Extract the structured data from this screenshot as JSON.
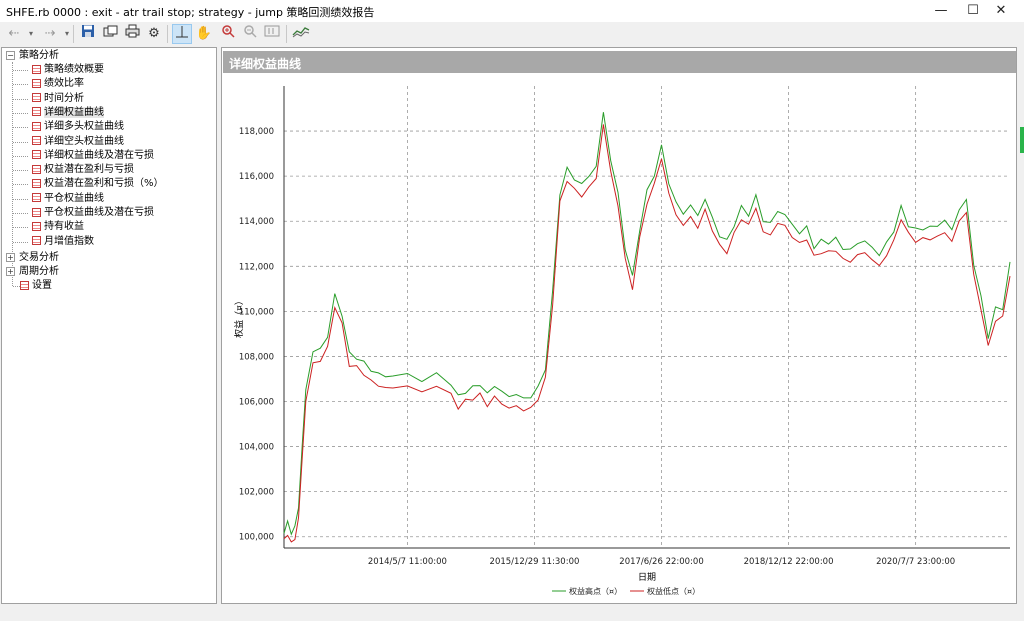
{
  "window": {
    "title": "SHFE.rb 0000 : exit - atr trail stop; strategy - jump 策略回测绩效报告"
  },
  "toolbar": {
    "icons": [
      "back-arrow-icon",
      "dropdown-icon",
      "forward-arrow-icon",
      "dropdown-icon",
      "save-icon",
      "copy-icon",
      "print-icon",
      "gear-icon",
      "crosshair-icon",
      "hand-icon",
      "zoom-in-icon",
      "zoom-out-icon",
      "zoom-reset-icon",
      "chart-style-icon"
    ]
  },
  "tree": {
    "groups": [
      {
        "label": "策略分析",
        "expanded": true
      },
      {
        "label": "交易分析",
        "expanded": false
      },
      {
        "label": "周期分析",
        "expanded": false
      }
    ],
    "items": [
      "策略绩效概要",
      "绩效比率",
      "时间分析",
      "详细权益曲线",
      "详细多头权益曲线",
      "详细空头权益曲线",
      "详细权益曲线及潜在亏损",
      "权益潜在盈利与亏损",
      "权益潜在盈利和亏损（%）",
      "平仓权益曲线",
      "平仓权益曲线及潜在亏损",
      "持有收益",
      "月增值指数"
    ],
    "settings": "设置",
    "selected_item": "详细权益曲线"
  },
  "panel": {
    "title": "详细权益曲线"
  },
  "chart_data": {
    "type": "line",
    "xlabel": "日期",
    "ylabel": "权益（¤）",
    "ylim": [
      99500,
      120000
    ],
    "x_ticks": [
      "2014/5/7 11:00:00",
      "2015/12/29 11:30:00",
      "2017/6/26 22:00:00",
      "2018/12/12 22:00:00",
      "2020/7/7 23:00:00"
    ],
    "y_ticks": [
      "100,000",
      "102,000",
      "104,000",
      "106,000",
      "108,000",
      "110,000",
      "112,000",
      "114,000",
      "116,000",
      "118,000"
    ],
    "y_tick_values": [
      100000,
      102000,
      104000,
      106000,
      108000,
      110000,
      112000,
      114000,
      116000,
      118000
    ],
    "grid": true,
    "legend_position": "bottom",
    "series": [
      {
        "name": "权益高点（¤）",
        "color": "#2a9d2a"
      },
      {
        "name": "权益低点（¤）",
        "color": "#cc2222"
      }
    ],
    "x": [
      0,
      0.005,
      0.01,
      0.015,
      0.02,
      0.025,
      0.03,
      0.04,
      0.05,
      0.06,
      0.07,
      0.08,
      0.09,
      0.1,
      0.11,
      0.12,
      0.13,
      0.14,
      0.15,
      0.17,
      0.19,
      0.21,
      0.23,
      0.24,
      0.25,
      0.26,
      0.27,
      0.28,
      0.29,
      0.3,
      0.31,
      0.32,
      0.33,
      0.34,
      0.35,
      0.36,
      0.37,
      0.38,
      0.39,
      0.4,
      0.41,
      0.42,
      0.43,
      0.44,
      0.45,
      0.46,
      0.47,
      0.48,
      0.49,
      0.5,
      0.51,
      0.52,
      0.53,
      0.54,
      0.55,
      0.56,
      0.57,
      0.58,
      0.59,
      0.6,
      0.61,
      0.62,
      0.63,
      0.64,
      0.65,
      0.66,
      0.67,
      0.68,
      0.69,
      0.7,
      0.71,
      0.72,
      0.73,
      0.74,
      0.75,
      0.76,
      0.77,
      0.78,
      0.79,
      0.8,
      0.81,
      0.82,
      0.83,
      0.84,
      0.85,
      0.86,
      0.87,
      0.88,
      0.89,
      0.9,
      0.91,
      0.92,
      0.93,
      0.94,
      0.95,
      0.96,
      0.97,
      0.98,
      0.99,
      1.0
    ],
    "values": [
      100000,
      100300,
      99900,
      100100,
      101000,
      103700,
      106200,
      107900,
      108000,
      108600,
      110400,
      109600,
      107800,
      107700,
      107400,
      107100,
      106900,
      106800,
      106800,
      106900,
      106600,
      106900,
      106500,
      105900,
      106200,
      106300,
      106500,
      106000,
      106400,
      106100,
      105900,
      106000,
      105800,
      105900,
      106300,
      107200,
      110500,
      115000,
      116000,
      115600,
      115300,
      115700,
      116100,
      118500,
      116400,
      114900,
      112500,
      111200,
      113400,
      115000,
      115800,
      117000,
      115400,
      114500,
      114000,
      114400,
      113900,
      114700,
      113800,
      113100,
      112800,
      113600,
      114300,
      114000,
      114800,
      113700,
      113600,
      114100,
      114000,
      113500,
      113200,
      113400,
      112600,
      112800,
      112800,
      112900,
      112500,
      112400,
      112700,
      112800,
      112500,
      112200,
      112700,
      113300,
      114300,
      113600,
      113300,
      113400,
      113400,
      113500,
      113700,
      113300,
      114200,
      114600,
      111800,
      110300,
      108600,
      109800,
      109900,
      111800
    ]
  }
}
